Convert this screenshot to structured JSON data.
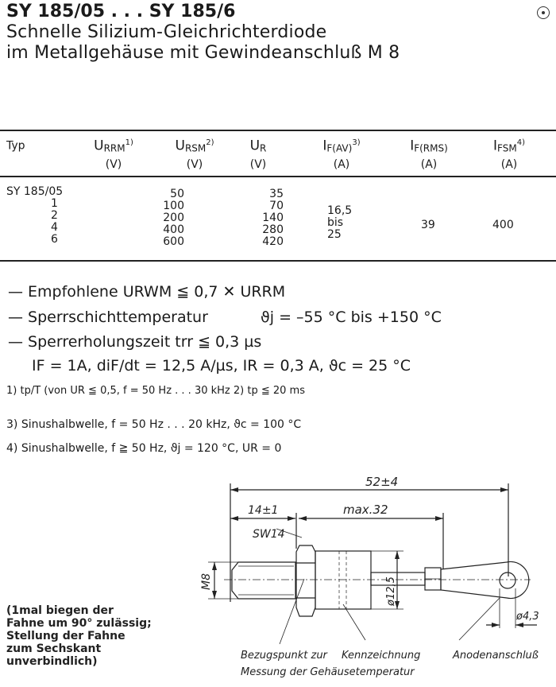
{
  "header": {
    "title": "SY 185/05 . . . SY 185/6",
    "subtitle_1": "Schnelle Silizium-Gleichrichterdiode",
    "subtitle_2": "im Metallgehäuse mit Gewindeanschluß M 8"
  },
  "table": {
    "headers": [
      {
        "main": "Typ",
        "sub": "",
        "sup": "",
        "unit": ""
      },
      {
        "main": "U",
        "sub": "RRM",
        "sup": "1)",
        "unit": "(V)"
      },
      {
        "main": "U",
        "sub": "RSM",
        "sup": "2)",
        "unit": "(V)"
      },
      {
        "main": "U",
        "sub": "R",
        "sup": "",
        "unit": "(V)"
      },
      {
        "main": "I",
        "sub": "F(AV)",
        "sup": "3)",
        "unit": "(A)"
      },
      {
        "main": "I",
        "sub": "F(RMS)",
        "sup": "",
        "unit": "(A)"
      },
      {
        "main": "I",
        "sub": "FSM",
        "sup": "4)",
        "unit": "(A)"
      }
    ],
    "types": [
      "SY 185/05",
      "1",
      "2",
      "4",
      "6"
    ],
    "urrm": [
      "50",
      "100",
      "200",
      "400",
      "600"
    ],
    "ur": [
      "35",
      "70",
      "140",
      "280",
      "420"
    ],
    "if_av": [
      "16,5",
      "bis",
      "25"
    ],
    "if_rms": "39",
    "ifsm": "400"
  },
  "specs": [
    "— Empfohlene URWM ≦ 0,7 ✕ URRM",
    "— Sperrschichttemperatur",
    "— Sperrerholungszeit trr ≦ 0,3 µs",
    "IF = 1A, diF/dt = 12,5 A/µs, IR = 0,3 A, ϑc = 25 °C"
  ],
  "spec_temp_value": "ϑj = –55 °C bis +150 °C",
  "footnotes": [
    "1) tp/T (von UR ≦ 0,5, f = 50 Hz . . . 30 kHz  2) tp ≦ 20 ms",
    "3)  Sinushalbwelle, f = 50 Hz . . . 20 kHz,  ϑc = 100 °C",
    "4)  Sinushalbwelle, f ≧ 50 Hz,  ϑj  = 120 °C,  UR = 0"
  ],
  "note": "(1mal biegen der\nFahne um 90° zulässig;\nStellung der Fahne\nzum Sechskant\nunverbindlich)",
  "drawing": {
    "dim_total": "52±4",
    "dim_thread": "14±1",
    "dim_body": "max.32",
    "wrench": "SW14",
    "thread": "M8",
    "body_dia": "ø12,5",
    "hole_dia": "ø4,3",
    "label_ref_1": "Bezugspunkt zur",
    "label_ref_2": "Messung der Gehäusetemperatur",
    "label_marking": "Kennzeichnung",
    "label_anode": "Anodenanschluß"
  }
}
